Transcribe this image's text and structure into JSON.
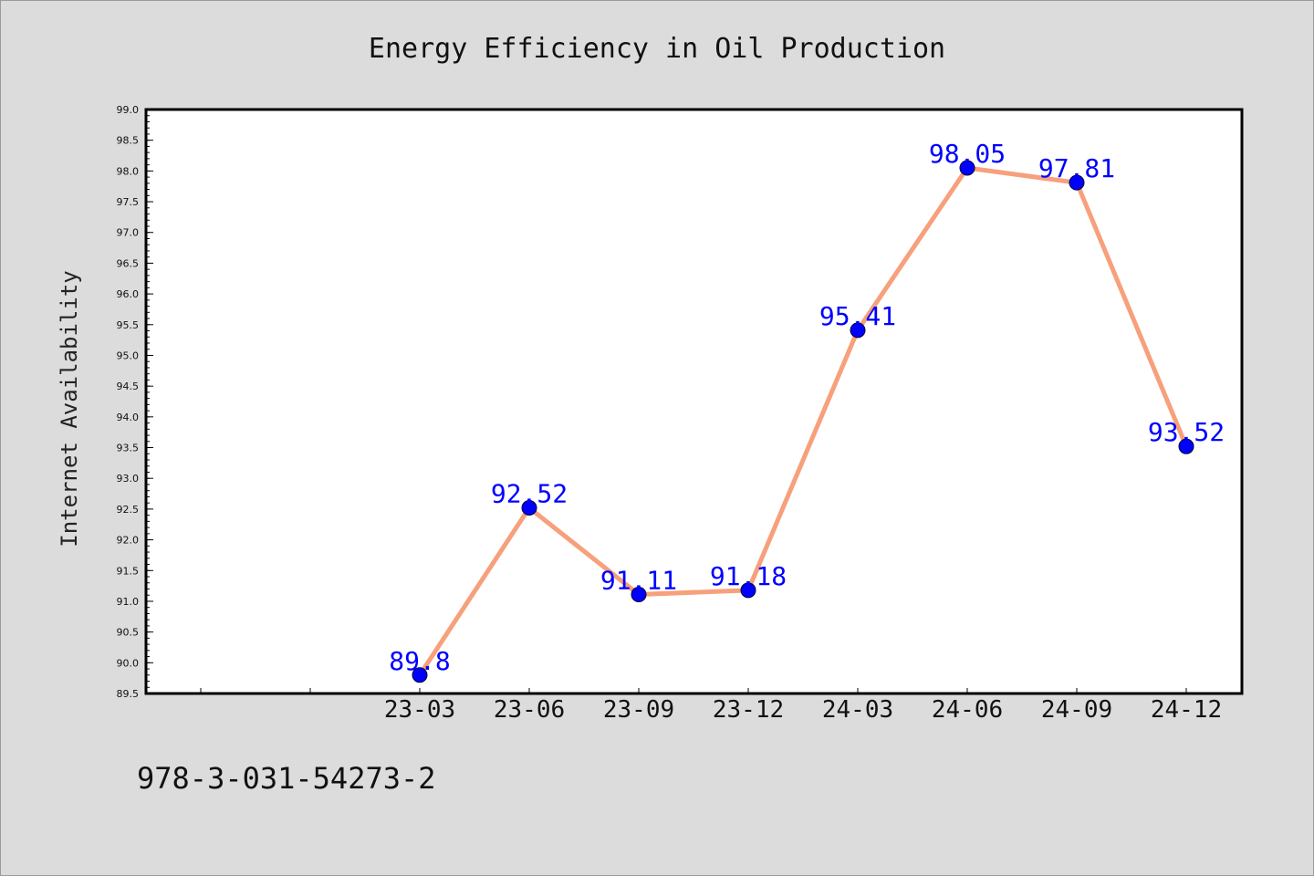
{
  "footer": {
    "id_text": "978-3-031-54273-2"
  },
  "colors": {
    "background": "#dcdcdc",
    "plot_background": "#ffffff",
    "line": "#f7a07c",
    "marker": "#0000ff",
    "label": "#0000ff"
  },
  "chart_data": {
    "type": "line",
    "title": "Energy Efficiency in Oil Production",
    "xlabel": "",
    "ylabel": "Internet Availability",
    "x": [
      "23-03",
      "23-06",
      "23-09",
      "23-12",
      "24-03",
      "24-06",
      "24-09",
      "24-12"
    ],
    "values": [
      89.8,
      92.52,
      91.11,
      91.18,
      95.41,
      98.05,
      97.81,
      93.52
    ],
    "data_labels": [
      "89.8",
      "92.52",
      "91.11",
      "91.18",
      "95.41",
      "98.05",
      "97.81",
      "93.52"
    ],
    "ylim": [
      89.5,
      99.0
    ],
    "y_ticks": [
      "89.5",
      "90.0",
      "90.5",
      "91.0",
      "91.5",
      "92.0",
      "92.5",
      "93.0",
      "93.5",
      "94.0",
      "94.5",
      "95.0",
      "95.5",
      "96.0",
      "96.5",
      "97.0",
      "97.5",
      "98.0",
      "98.5",
      "99.0"
    ],
    "grid": false,
    "legend": "none"
  }
}
